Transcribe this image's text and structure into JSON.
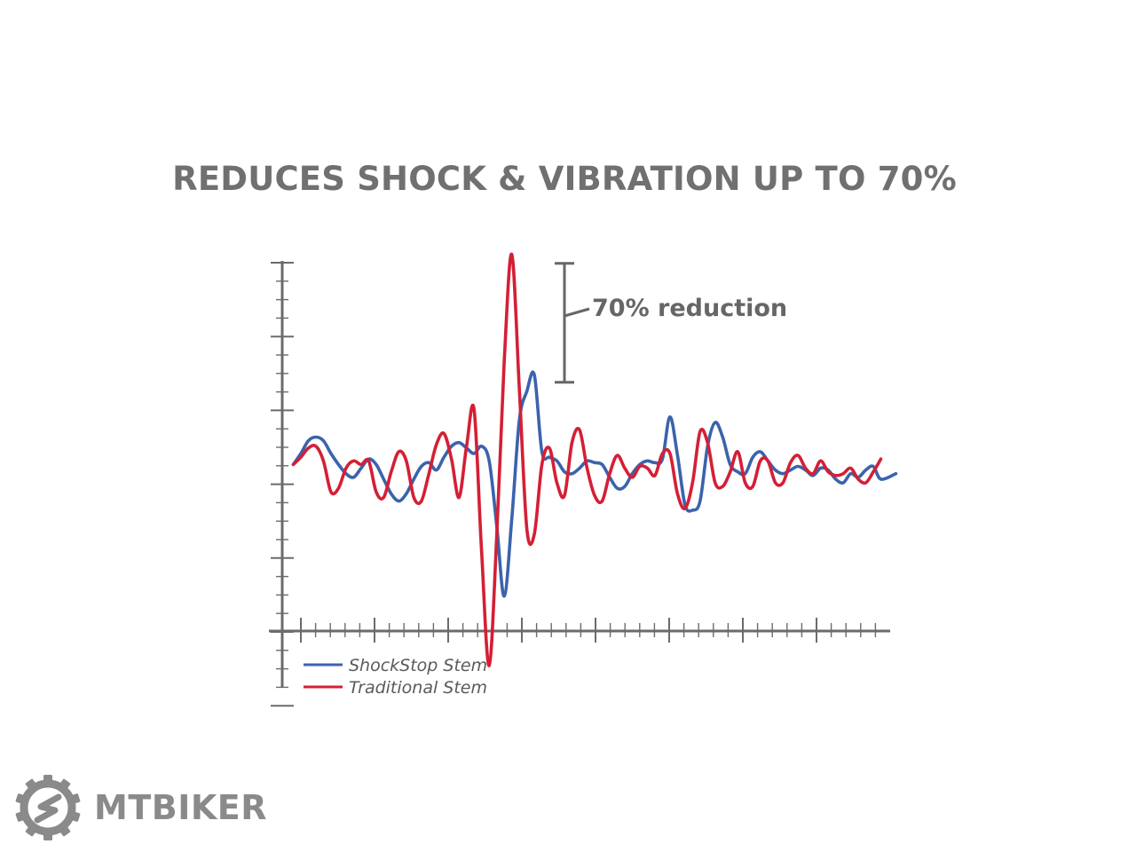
{
  "chart_data": {
    "type": "line",
    "title": "REDUCES SHOCK & VIBRATION UP TO 70%",
    "xlabel": "",
    "ylabel": "",
    "xlim": [
      0,
      40
    ],
    "ylim": [
      -1.0,
      1.25
    ],
    "grid": false,
    "legend_position": "bottom-left",
    "annotation": {
      "text": "70% reduction",
      "bracket_from": 1.2,
      "bracket_to": 0.55,
      "x": 19
    },
    "series": [
      {
        "name": "ShockStop Stem",
        "color": "#3b63ac",
        "x": [
          0.5,
          1.0,
          1.5,
          2.0,
          2.5,
          3.0,
          3.5,
          4.0,
          4.5,
          5.0,
          5.5,
          6.0,
          6.5,
          7.0,
          7.5,
          8.0,
          8.5,
          9.0,
          9.5,
          10.0,
          10.5,
          11.0,
          11.5,
          12.0,
          12.5,
          13.0,
          13.5,
          14.0,
          14.5,
          15.0,
          15.5,
          16.0,
          16.5,
          17.0,
          17.5,
          18.0,
          18.5,
          19.0,
          19.5,
          20.0,
          20.5,
          21.0,
          21.5,
          22.0,
          22.5,
          23.0,
          23.5,
          24.0,
          24.5,
          25.0,
          25.5,
          26.0,
          26.5,
          27.0,
          27.5,
          28.0,
          28.5,
          29.0,
          29.5,
          30.0,
          30.5,
          31.0,
          31.5,
          32.0,
          32.5,
          33.0,
          33.5,
          34.0,
          34.5,
          35.0,
          35.5,
          36.0,
          36.5,
          37.0,
          37.5,
          38.0,
          38.5,
          39.0,
          39.5,
          40.5
        ],
        "values": [
          0.1,
          0.16,
          0.23,
          0.25,
          0.23,
          0.16,
          0.1,
          0.05,
          0.03,
          0.08,
          0.13,
          0.1,
          0.02,
          -0.06,
          -0.1,
          -0.06,
          0.02,
          0.09,
          0.11,
          0.07,
          0.14,
          0.2,
          0.22,
          0.19,
          0.16,
          0.2,
          0.12,
          -0.23,
          -0.62,
          -0.2,
          0.34,
          0.5,
          0.59,
          0.17,
          0.14,
          0.12,
          0.06,
          0.05,
          0.08,
          0.12,
          0.11,
          0.1,
          0.03,
          -0.03,
          -0.02,
          0.05,
          0.1,
          0.12,
          0.11,
          0.13,
          0.36,
          0.15,
          -0.12,
          -0.15,
          -0.1,
          0.2,
          0.33,
          0.25,
          0.1,
          0.06,
          0.05,
          0.14,
          0.17,
          0.12,
          0.07,
          0.05,
          0.07,
          0.09,
          0.07,
          0.04,
          0.08,
          0.07,
          0.02,
          0.0,
          0.05,
          0.03,
          0.07,
          0.09,
          0.02,
          0.05
        ]
      },
      {
        "name": "Traditional Stem",
        "color": "#d41f35",
        "x": [
          0.5,
          1.0,
          1.5,
          2.0,
          2.5,
          3.0,
          3.5,
          4.0,
          4.5,
          5.0,
          5.5,
          6.0,
          6.5,
          7.0,
          7.5,
          8.0,
          8.5,
          9.0,
          9.5,
          10.0,
          10.5,
          11.0,
          11.5,
          12.0,
          12.5,
          13.0,
          13.5,
          14.0,
          14.5,
          15.0,
          15.5,
          16.0,
          16.5,
          17.0,
          17.5,
          18.0,
          18.5,
          19.0,
          19.5,
          20.0,
          20.5,
          21.0,
          21.5,
          22.0,
          22.5,
          23.0,
          23.5,
          24.0,
          24.5,
          25.0,
          25.5,
          26.0,
          26.5,
          27.0,
          27.5,
          28.0,
          28.5,
          29.0,
          29.5,
          30.0,
          30.5,
          31.0,
          31.5,
          32.0,
          32.5,
          33.0,
          33.5,
          34.0,
          34.5,
          35.0,
          35.5,
          36.0,
          36.5,
          37.0,
          37.5,
          38.0,
          38.5,
          39.0,
          39.5
        ],
        "values": [
          0.1,
          0.14,
          0.19,
          0.2,
          0.12,
          -0.05,
          -0.03,
          0.08,
          0.12,
          0.1,
          0.12,
          -0.05,
          -0.08,
          0.06,
          0.17,
          0.12,
          -0.08,
          -0.1,
          0.05,
          0.21,
          0.27,
          0.13,
          -0.08,
          0.2,
          0.4,
          -0.38,
          -1.0,
          -0.3,
          0.66,
          1.25,
          0.52,
          -0.25,
          -0.28,
          0.1,
          0.19,
          0.0,
          -0.07,
          0.22,
          0.29,
          0.08,
          -0.07,
          -0.1,
          0.05,
          0.15,
          0.08,
          0.03,
          0.09,
          0.08,
          0.04,
          0.16,
          0.16,
          -0.06,
          -0.14,
          0.0,
          0.28,
          0.22,
          0.0,
          -0.02,
          0.06,
          0.17,
          0.0,
          -0.02,
          0.12,
          0.12,
          0.0,
          0.0,
          0.11,
          0.15,
          0.08,
          0.05,
          0.12,
          0.06,
          0.04,
          0.05,
          0.08,
          0.02,
          0.0,
          0.06,
          0.13
        ]
      }
    ]
  },
  "logo": {
    "text": "MTBIKER"
  },
  "colors": {
    "title": "#707070",
    "axis": "#6b6b6b",
    "logo": "#8a8a8a",
    "bracket": "#666666"
  }
}
